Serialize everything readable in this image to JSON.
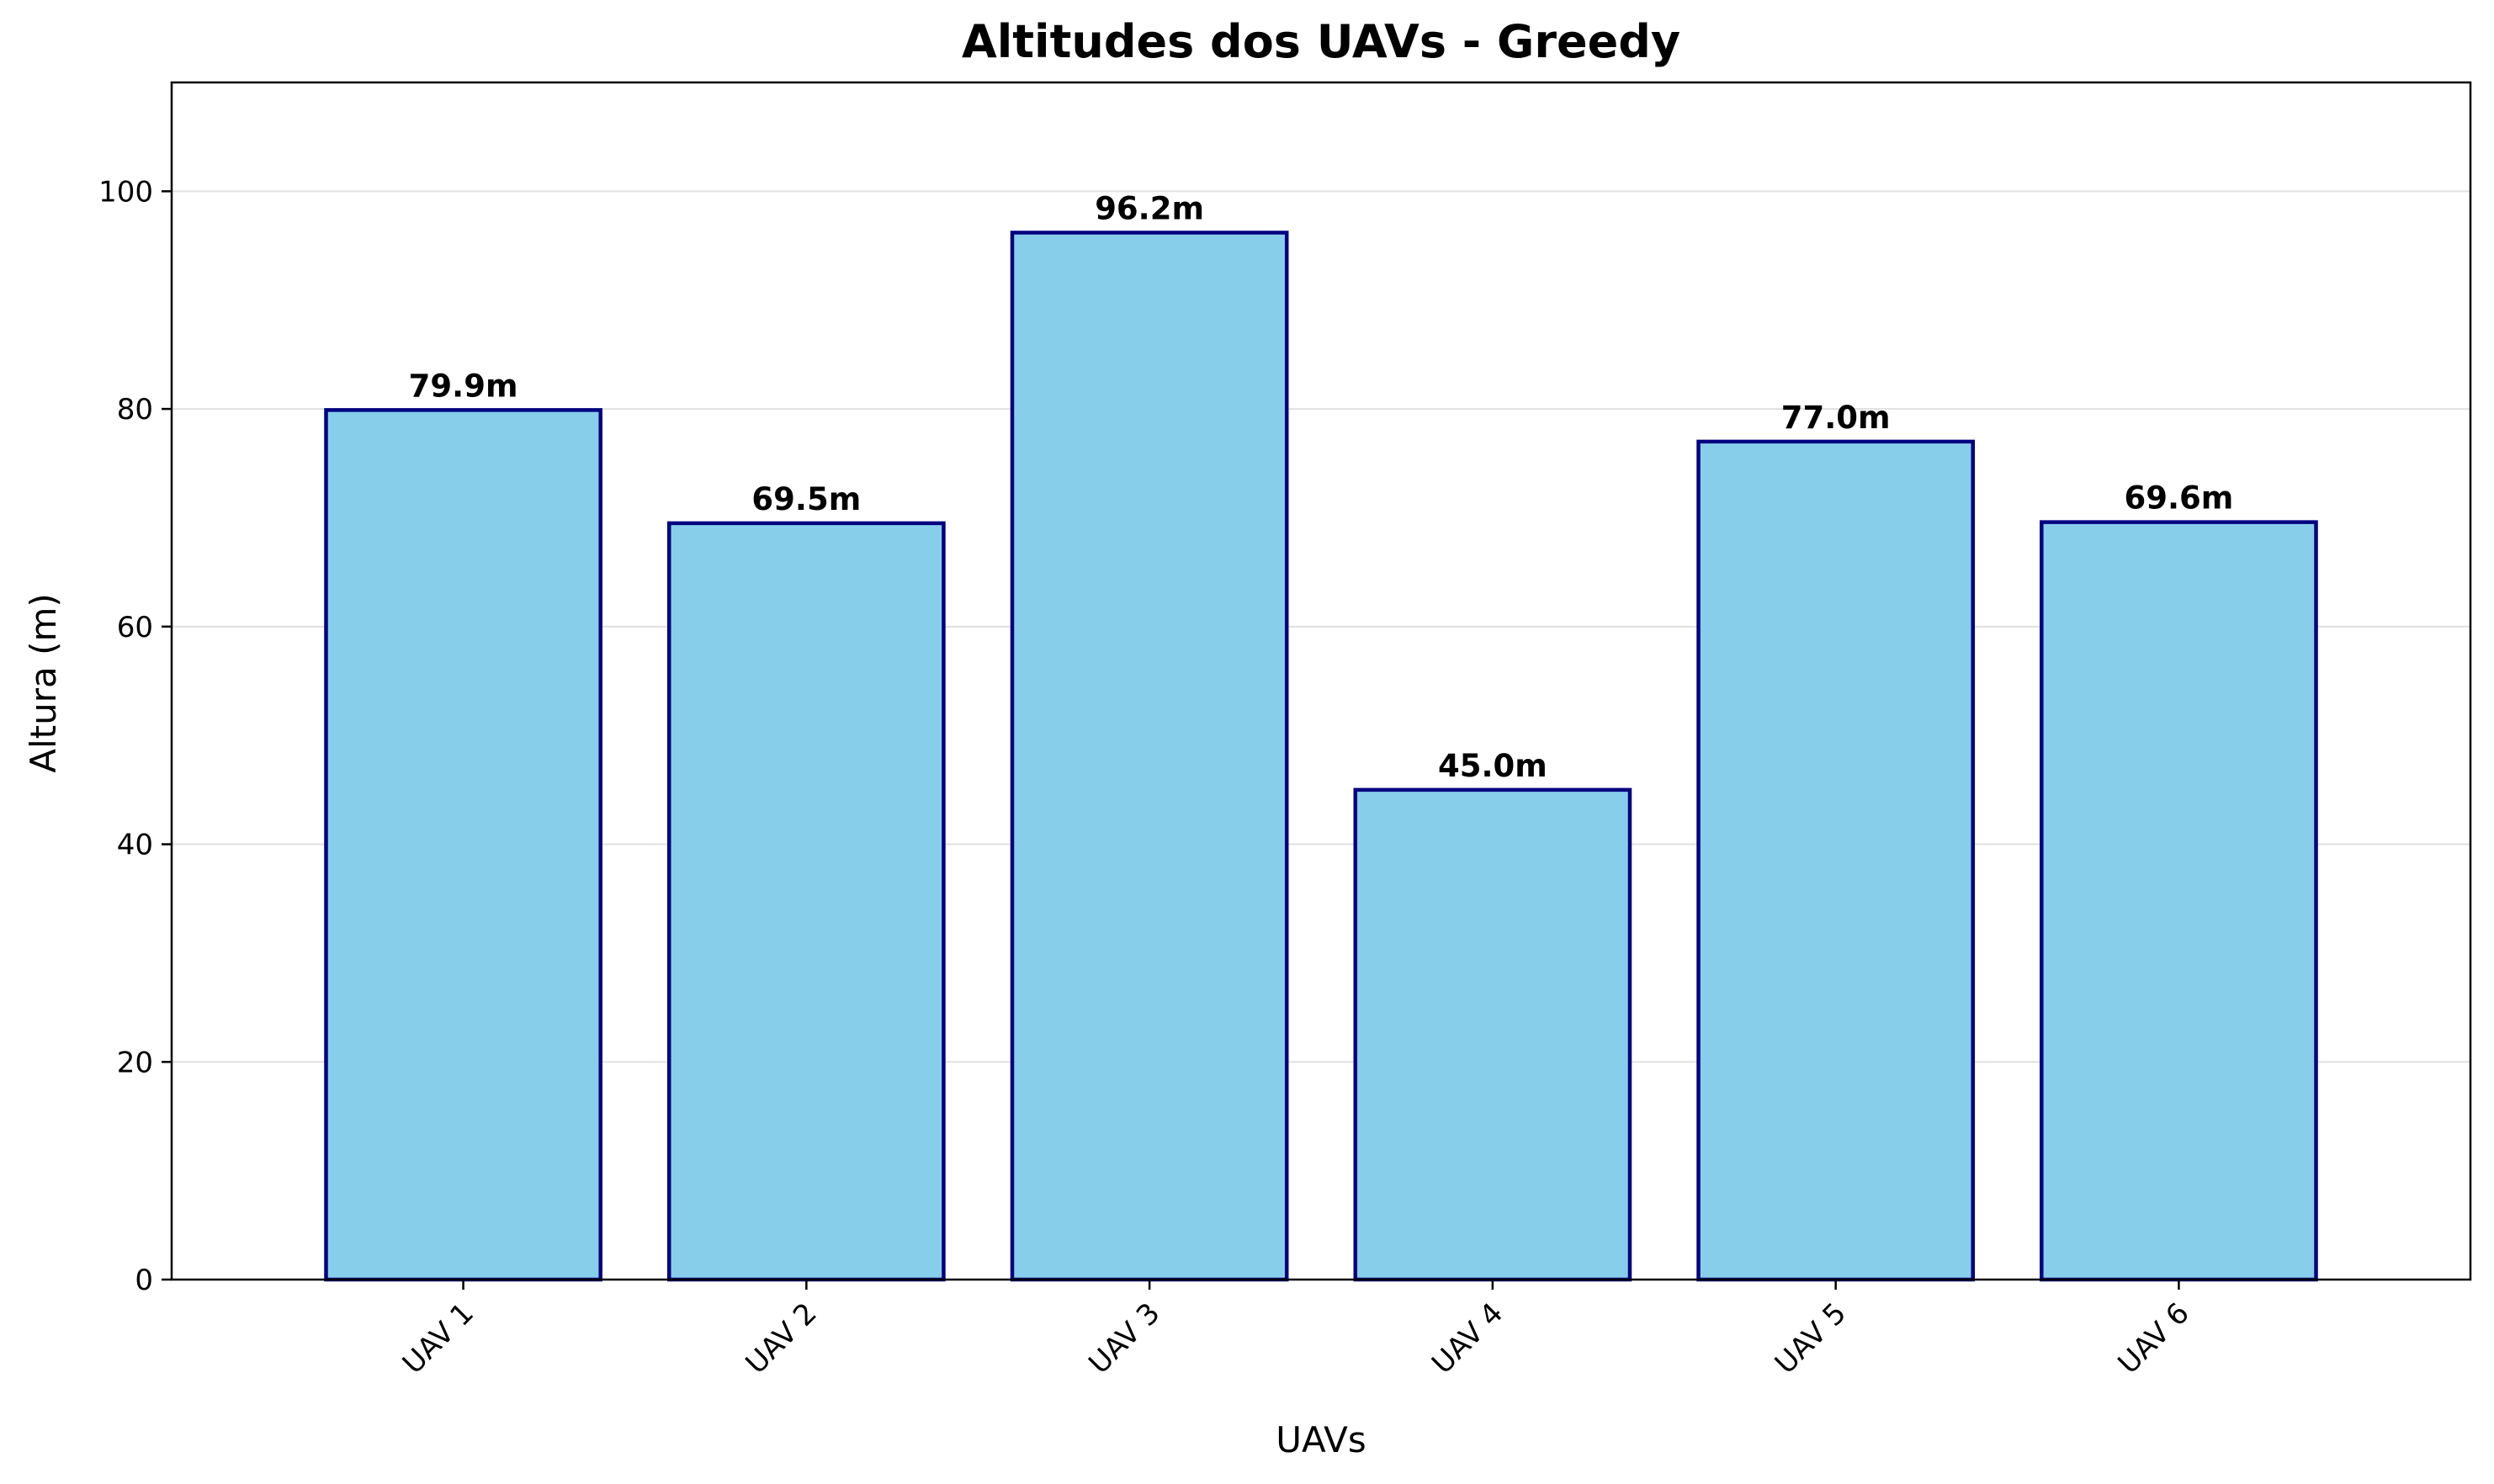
{
  "chart_data": {
    "type": "bar",
    "title": "Altitudes dos UAVs - Greedy",
    "xlabel": "UAVs",
    "ylabel": "Altura (m)",
    "categories": [
      "UAV 1",
      "UAV 2",
      "UAV 3",
      "UAV 4",
      "UAV 5",
      "UAV 6"
    ],
    "values": [
      79.9,
      69.5,
      96.2,
      45.0,
      77.0,
      69.6
    ],
    "data_labels": [
      "79.9m",
      "69.5m",
      "96.2m",
      "45.0m",
      "77.0m",
      "69.6m"
    ],
    "ylim": [
      0,
      110
    ],
    "yticks": [
      0,
      20,
      40,
      60,
      80,
      100
    ],
    "ytick_labels": [
      "0",
      "20",
      "40",
      "60",
      "80",
      "100"
    ],
    "grid": "y",
    "legend": "none",
    "colors": {
      "bar_fill": "#87CEEB",
      "bar_edge": "#000080",
      "grid": "#e0e0e0"
    }
  }
}
